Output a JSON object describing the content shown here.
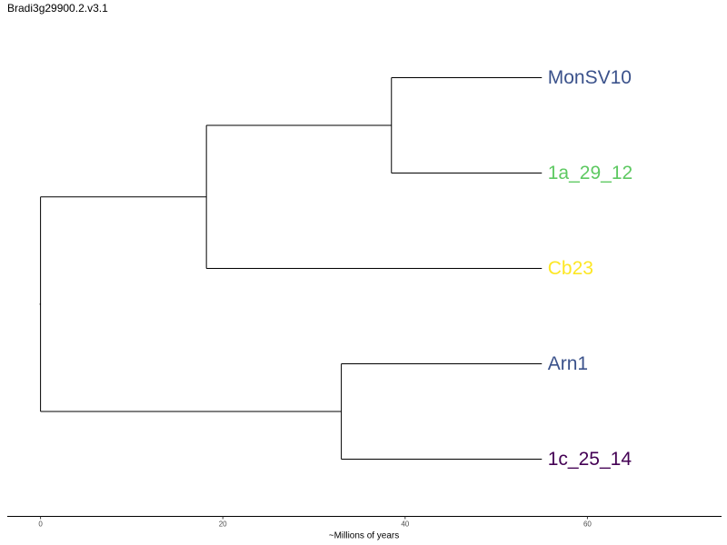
{
  "page": {
    "title": "Bradi3g29900.2.v3.1"
  },
  "chart_data": {
    "type": "dendrogram",
    "title": "Bradi3g29900.2.v3.1",
    "xlabel": "~Millions of years",
    "xlim": [
      0,
      75
    ],
    "x_ticks": [
      0,
      20,
      40,
      60
    ],
    "tip_depth": 55,
    "tips": [
      {
        "label": "MonSV10",
        "color": "#3b528b"
      },
      {
        "label": "1a_29_12",
        "color": "#5ec962"
      },
      {
        "label": "Cb23",
        "color": "#fde725"
      },
      {
        "label": "Arn1",
        "color": "#3b528b"
      },
      {
        "label": "1c_25_14",
        "color": "#440154"
      }
    ],
    "clades": [
      {
        "id": "root",
        "height": 0,
        "children": [
          "c1",
          "c2"
        ]
      },
      {
        "id": "c1",
        "height": 18.2,
        "children": [
          "c3",
          "Cb23"
        ]
      },
      {
        "id": "c3",
        "height": 38.5,
        "children": [
          "MonSV10",
          "1a_29_12"
        ]
      },
      {
        "id": "c2",
        "height": 33,
        "children": [
          "Arn1",
          "1c_25_14"
        ]
      }
    ]
  }
}
